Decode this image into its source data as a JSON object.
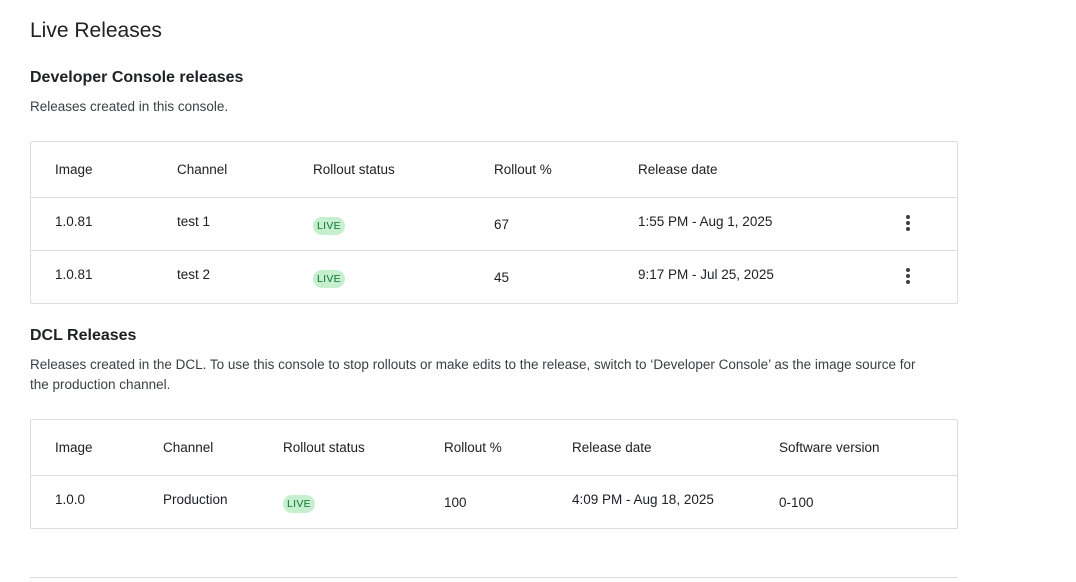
{
  "page": {
    "title": "Live Releases"
  },
  "dev_console": {
    "heading": "Developer Console releases",
    "description": "Releases created in this console.",
    "columns": [
      "Image",
      "Channel",
      "Rollout status",
      "Rollout %",
      "Release date"
    ],
    "rows": [
      {
        "image": "1.0.81",
        "channel": "test 1",
        "status": "LIVE",
        "rollout": "67",
        "date": "1:55 PM - Aug 1, 2025"
      },
      {
        "image": "1.0.81",
        "channel": "test 2",
        "status": "LIVE",
        "rollout": "45",
        "date": "9:17 PM - Jul 25, 2025"
      }
    ],
    "row_menu_icon": "more-vert-icon"
  },
  "dcl": {
    "heading": "DCL Releases",
    "description": "Releases created in the DCL. To use this console to stop rollouts or make edits to the release, switch to ‘Developer Console’ as the image source for the production channel.",
    "columns": [
      "Image",
      "Channel",
      "Rollout status",
      "Rollout %",
      "Release date",
      "Software version"
    ],
    "rows": [
      {
        "image": "1.0.0",
        "channel": "Production",
        "status": "LIVE",
        "rollout": "100",
        "date": "4:09 PM - Aug 18, 2025",
        "software_version": "0-100"
      }
    ]
  },
  "colors": {
    "live_badge_bg": "#c6efcf",
    "live_badge_text": "#137333",
    "border": "#dadce0"
  }
}
